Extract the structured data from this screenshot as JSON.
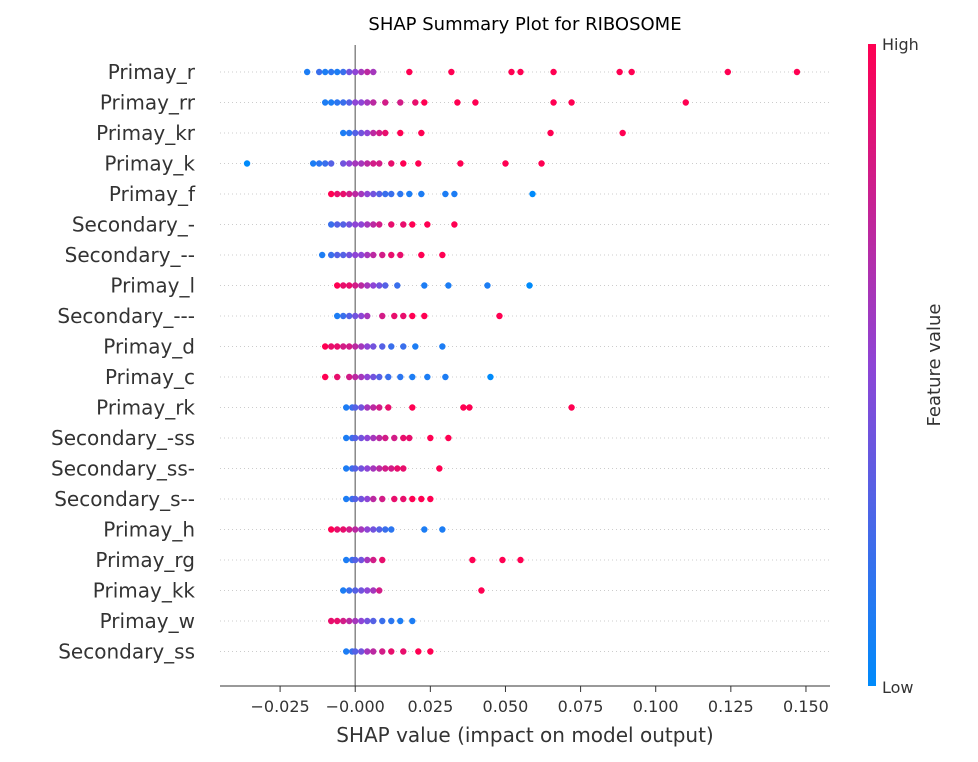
{
  "chart_data": {
    "type": "scatter",
    "subtype": "shap-beeswarm",
    "title": "SHAP Summary Plot for RIBOSOME",
    "xlabel": "SHAP value (impact on model output)",
    "xlim": [
      -0.045,
      0.158
    ],
    "xticks": [
      {
        "value": -0.025,
        "label": "−0.025"
      },
      {
        "value": 0.0,
        "label": "−0.000"
      },
      {
        "value": 0.025,
        "label": "0.025"
      },
      {
        "value": 0.05,
        "label": "0.050"
      },
      {
        "value": 0.075,
        "label": "0.075"
      },
      {
        "value": 0.1,
        "label": "0.100"
      },
      {
        "value": 0.125,
        "label": "0.125"
      },
      {
        "value": 0.15,
        "label": "0.150"
      }
    ],
    "colorbar": {
      "label": "Feature value",
      "high_label": "High",
      "low_label": "Low",
      "low_color": "#008bfb",
      "high_color": "#ff0052"
    },
    "grid": false,
    "features": [
      {
        "name": "Primay_r",
        "points": [
          [
            -0.016,
            0.1
          ],
          [
            -0.012,
            0.2
          ],
          [
            -0.01,
            0.1
          ],
          [
            -0.008,
            0.15
          ],
          [
            -0.006,
            0.1
          ],
          [
            -0.004,
            0.2
          ],
          [
            -0.002,
            0.4
          ],
          [
            0.0,
            0.5
          ],
          [
            0.002,
            0.6
          ],
          [
            0.004,
            0.7
          ],
          [
            0.006,
            0.6
          ],
          [
            0.018,
            1
          ],
          [
            0.032,
            1
          ],
          [
            0.052,
            1
          ],
          [
            0.055,
            1
          ],
          [
            0.066,
            1
          ],
          [
            0.088,
            1
          ],
          [
            0.092,
            1
          ],
          [
            0.124,
            1
          ],
          [
            0.147,
            1
          ]
        ]
      },
      {
        "name": "Primay_rr",
        "points": [
          [
            -0.01,
            0.1
          ],
          [
            -0.008,
            0.1
          ],
          [
            -0.006,
            0.15
          ],
          [
            -0.004,
            0.2
          ],
          [
            -0.002,
            0.3
          ],
          [
            0.0,
            0.5
          ],
          [
            0.002,
            0.5
          ],
          [
            0.004,
            0.6
          ],
          [
            0.006,
            0.7
          ],
          [
            0.01,
            0.8
          ],
          [
            0.015,
            0.8
          ],
          [
            0.02,
            0.9
          ],
          [
            0.023,
            1
          ],
          [
            0.034,
            1
          ],
          [
            0.04,
            1
          ],
          [
            0.066,
            1
          ],
          [
            0.072,
            1
          ],
          [
            0.11,
            1
          ]
        ]
      },
      {
        "name": "Primay_kr",
        "points": [
          [
            -0.004,
            0.1
          ],
          [
            -0.002,
            0.15
          ],
          [
            0.0,
            0.3
          ],
          [
            0.002,
            0.4
          ],
          [
            0.004,
            0.5
          ],
          [
            0.006,
            0.7
          ],
          [
            0.008,
            0.8
          ],
          [
            0.01,
            0.9
          ],
          [
            0.015,
            1
          ],
          [
            0.022,
            1
          ],
          [
            0.065,
            1
          ],
          [
            0.089,
            1
          ]
        ]
      },
      {
        "name": "Primay_k",
        "points": [
          [
            -0.036,
            0.0
          ],
          [
            -0.014,
            0.1
          ],
          [
            -0.012,
            0.15
          ],
          [
            -0.01,
            0.2
          ],
          [
            -0.008,
            0.3
          ],
          [
            -0.004,
            0.4
          ],
          [
            -0.002,
            0.5
          ],
          [
            0.0,
            0.6
          ],
          [
            0.002,
            0.6
          ],
          [
            0.004,
            0.7
          ],
          [
            0.006,
            0.8
          ],
          [
            0.008,
            0.8
          ],
          [
            0.012,
            0.9
          ],
          [
            0.016,
            1
          ],
          [
            0.021,
            1
          ],
          [
            0.035,
            1
          ],
          [
            0.05,
            1
          ],
          [
            0.062,
            1
          ]
        ]
      },
      {
        "name": "Primay_f",
        "points": [
          [
            -0.008,
            1
          ],
          [
            -0.006,
            0.9
          ],
          [
            -0.004,
            0.9
          ],
          [
            -0.002,
            0.8
          ],
          [
            0.0,
            0.7
          ],
          [
            0.002,
            0.6
          ],
          [
            0.004,
            0.5
          ],
          [
            0.006,
            0.4
          ],
          [
            0.008,
            0.3
          ],
          [
            0.01,
            0.2
          ],
          [
            0.012,
            0.2
          ],
          [
            0.015,
            0.15
          ],
          [
            0.018,
            0.1
          ],
          [
            0.022,
            0.1
          ],
          [
            0.03,
            0.1
          ],
          [
            0.033,
            0.1
          ],
          [
            0.059,
            0.0
          ]
        ]
      },
      {
        "name": "Secondary_-",
        "points": [
          [
            -0.008,
            0.2
          ],
          [
            -0.006,
            0.3
          ],
          [
            -0.004,
            0.3
          ],
          [
            -0.002,
            0.4
          ],
          [
            0.0,
            0.5
          ],
          [
            0.002,
            0.5
          ],
          [
            0.004,
            0.6
          ],
          [
            0.006,
            0.7
          ],
          [
            0.008,
            0.8
          ],
          [
            0.012,
            0.9
          ],
          [
            0.016,
            0.9
          ],
          [
            0.019,
            1
          ],
          [
            0.024,
            1
          ],
          [
            0.033,
            1
          ]
        ]
      },
      {
        "name": "Secondary_--",
        "points": [
          [
            -0.011,
            0.1
          ],
          [
            -0.008,
            0.2
          ],
          [
            -0.006,
            0.3
          ],
          [
            -0.004,
            0.3
          ],
          [
            -0.002,
            0.4
          ],
          [
            0.0,
            0.5
          ],
          [
            0.002,
            0.5
          ],
          [
            0.004,
            0.6
          ],
          [
            0.006,
            0.7
          ],
          [
            0.009,
            0.8
          ],
          [
            0.012,
            0.9
          ],
          [
            0.015,
            0.9
          ],
          [
            0.022,
            1
          ],
          [
            0.029,
            1
          ]
        ]
      },
      {
        "name": "Primay_l",
        "points": [
          [
            -0.006,
            1
          ],
          [
            -0.004,
            0.9
          ],
          [
            -0.002,
            0.9
          ],
          [
            0.0,
            0.8
          ],
          [
            0.002,
            0.7
          ],
          [
            0.004,
            0.6
          ],
          [
            0.006,
            0.5
          ],
          [
            0.008,
            0.4
          ],
          [
            0.01,
            0.3
          ],
          [
            0.014,
            0.2
          ],
          [
            0.023,
            0.1
          ],
          [
            0.031,
            0.1
          ],
          [
            0.044,
            0.1
          ],
          [
            0.058,
            0.0
          ]
        ]
      },
      {
        "name": "Secondary_---",
        "points": [
          [
            -0.006,
            0.1
          ],
          [
            -0.004,
            0.2
          ],
          [
            -0.002,
            0.3
          ],
          [
            0.0,
            0.4
          ],
          [
            0.002,
            0.5
          ],
          [
            0.004,
            0.6
          ],
          [
            0.009,
            0.8
          ],
          [
            0.013,
            0.9
          ],
          [
            0.016,
            0.9
          ],
          [
            0.019,
            1
          ],
          [
            0.023,
            1
          ],
          [
            0.048,
            1
          ]
        ]
      },
      {
        "name": "Primay_d",
        "points": [
          [
            -0.01,
            1
          ],
          [
            -0.008,
            0.9
          ],
          [
            -0.006,
            0.9
          ],
          [
            -0.004,
            0.8
          ],
          [
            -0.002,
            0.8
          ],
          [
            0.0,
            0.7
          ],
          [
            0.002,
            0.6
          ],
          [
            0.004,
            0.5
          ],
          [
            0.006,
            0.4
          ],
          [
            0.009,
            0.3
          ],
          [
            0.012,
            0.2
          ],
          [
            0.016,
            0.2
          ],
          [
            0.02,
            0.1
          ],
          [
            0.029,
            0.1
          ]
        ]
      },
      {
        "name": "Primay_c",
        "points": [
          [
            -0.01,
            1
          ],
          [
            -0.006,
            0.9
          ],
          [
            -0.002,
            0.8
          ],
          [
            0.0,
            0.7
          ],
          [
            0.002,
            0.6
          ],
          [
            0.004,
            0.5
          ],
          [
            0.006,
            0.4
          ],
          [
            0.008,
            0.3
          ],
          [
            0.011,
            0.2
          ],
          [
            0.015,
            0.15
          ],
          [
            0.019,
            0.1
          ],
          [
            0.024,
            0.1
          ],
          [
            0.03,
            0.1
          ],
          [
            0.045,
            0.0
          ]
        ]
      },
      {
        "name": "Primay_rk",
        "points": [
          [
            -0.003,
            0.1
          ],
          [
            -0.001,
            0.2
          ],
          [
            0.0,
            0.3
          ],
          [
            0.002,
            0.4
          ],
          [
            0.004,
            0.6
          ],
          [
            0.006,
            0.7
          ],
          [
            0.008,
            0.8
          ],
          [
            0.011,
            0.9
          ],
          [
            0.019,
            1
          ],
          [
            0.036,
            1
          ],
          [
            0.038,
            1
          ],
          [
            0.072,
            1
          ]
        ]
      },
      {
        "name": "Secondary_-ss",
        "points": [
          [
            -0.003,
            0.1
          ],
          [
            -0.001,
            0.2
          ],
          [
            0.0,
            0.3
          ],
          [
            0.002,
            0.4
          ],
          [
            0.004,
            0.5
          ],
          [
            0.006,
            0.6
          ],
          [
            0.008,
            0.7
          ],
          [
            0.01,
            0.8
          ],
          [
            0.013,
            0.8
          ],
          [
            0.016,
            0.9
          ],
          [
            0.018,
            0.9
          ],
          [
            0.025,
            1
          ],
          [
            0.031,
            1
          ]
        ]
      },
      {
        "name": "Secondary_ss-",
        "points": [
          [
            -0.003,
            0.1
          ],
          [
            -0.001,
            0.2
          ],
          [
            0.0,
            0.3
          ],
          [
            0.002,
            0.4
          ],
          [
            0.004,
            0.5
          ],
          [
            0.006,
            0.6
          ],
          [
            0.008,
            0.7
          ],
          [
            0.01,
            0.8
          ],
          [
            0.012,
            0.8
          ],
          [
            0.014,
            0.9
          ],
          [
            0.016,
            0.9
          ],
          [
            0.028,
            1
          ]
        ]
      },
      {
        "name": "Secondary_s--",
        "points": [
          [
            -0.003,
            0.1
          ],
          [
            -0.001,
            0.2
          ],
          [
            0.0,
            0.3
          ],
          [
            0.002,
            0.4
          ],
          [
            0.004,
            0.5
          ],
          [
            0.006,
            0.7
          ],
          [
            0.009,
            0.8
          ],
          [
            0.013,
            0.9
          ],
          [
            0.016,
            0.9
          ],
          [
            0.019,
            1
          ],
          [
            0.022,
            1
          ],
          [
            0.025,
            1
          ]
        ]
      },
      {
        "name": "Primay_h",
        "points": [
          [
            -0.008,
            1
          ],
          [
            -0.006,
            0.9
          ],
          [
            -0.004,
            0.9
          ],
          [
            -0.002,
            0.8
          ],
          [
            0.0,
            0.7
          ],
          [
            0.002,
            0.6
          ],
          [
            0.004,
            0.5
          ],
          [
            0.006,
            0.4
          ],
          [
            0.008,
            0.3
          ],
          [
            0.01,
            0.2
          ],
          [
            0.012,
            0.15
          ],
          [
            0.023,
            0.1
          ],
          [
            0.029,
            0.1
          ]
        ]
      },
      {
        "name": "Primay_rg",
        "points": [
          [
            -0.003,
            0.1
          ],
          [
            -0.001,
            0.2
          ],
          [
            0.0,
            0.3
          ],
          [
            0.002,
            0.4
          ],
          [
            0.004,
            0.6
          ],
          [
            0.006,
            0.8
          ],
          [
            0.009,
            0.9
          ],
          [
            0.039,
            1
          ],
          [
            0.049,
            1
          ],
          [
            0.055,
            1
          ]
        ]
      },
      {
        "name": "Primay_kk",
        "points": [
          [
            -0.004,
            0.1
          ],
          [
            -0.002,
            0.2
          ],
          [
            0.0,
            0.3
          ],
          [
            0.002,
            0.4
          ],
          [
            0.004,
            0.5
          ],
          [
            0.006,
            0.6
          ],
          [
            0.008,
            0.8
          ],
          [
            0.042,
            1
          ]
        ]
      },
      {
        "name": "Primay_w",
        "points": [
          [
            -0.008,
            0.9
          ],
          [
            -0.006,
            0.9
          ],
          [
            -0.004,
            0.8
          ],
          [
            -0.002,
            0.7
          ],
          [
            0.0,
            0.6
          ],
          [
            0.002,
            0.5
          ],
          [
            0.004,
            0.4
          ],
          [
            0.006,
            0.3
          ],
          [
            0.009,
            0.2
          ],
          [
            0.012,
            0.15
          ],
          [
            0.015,
            0.1
          ],
          [
            0.019,
            0.1
          ]
        ]
      },
      {
        "name": "Secondary_ss",
        "points": [
          [
            -0.003,
            0.1
          ],
          [
            -0.001,
            0.2
          ],
          [
            0.0,
            0.3
          ],
          [
            0.002,
            0.4
          ],
          [
            0.004,
            0.6
          ],
          [
            0.006,
            0.7
          ],
          [
            0.009,
            0.8
          ],
          [
            0.012,
            0.9
          ],
          [
            0.016,
            0.9
          ],
          [
            0.021,
            1
          ],
          [
            0.025,
            1
          ]
        ]
      }
    ]
  }
}
